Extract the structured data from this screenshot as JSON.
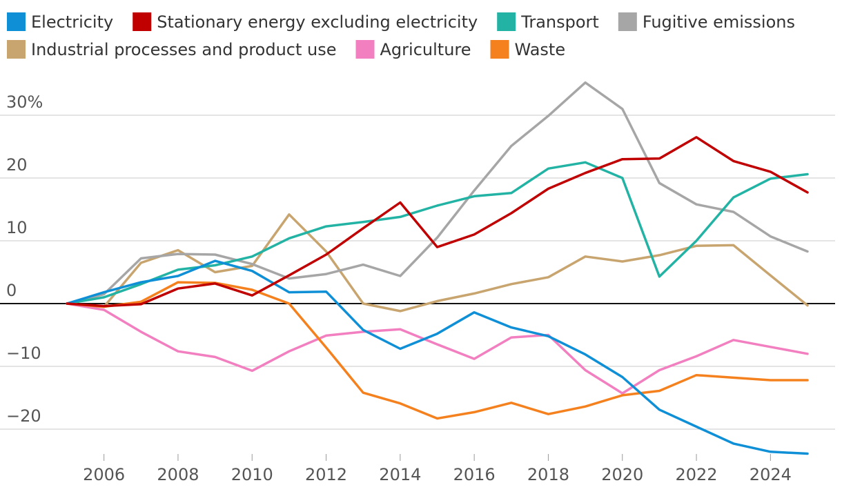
{
  "chart_data": {
    "type": "line",
    "title": "",
    "xlabel": "",
    "ylabel": "",
    "ylim": [
      -24,
      36
    ],
    "xlim": [
      2005,
      2025
    ],
    "grid": true,
    "legend_position": "top",
    "x": [
      2005,
      2006,
      2007,
      2008,
      2009,
      2010,
      2011,
      2012,
      2013,
      2014,
      2015,
      2016,
      2017,
      2018,
      2019,
      2020,
      2021,
      2022,
      2023,
      2024,
      2025
    ],
    "x_ticks": [
      {
        "value": 2006,
        "label": "2006"
      },
      {
        "value": 2008,
        "label": "2008"
      },
      {
        "value": 2010,
        "label": "2010"
      },
      {
        "value": 2012,
        "label": "2012"
      },
      {
        "value": 2014,
        "label": "2014"
      },
      {
        "value": 2016,
        "label": "2016"
      },
      {
        "value": 2018,
        "label": "2018"
      },
      {
        "value": 2020,
        "label": "2020"
      },
      {
        "value": 2022,
        "label": "2022"
      },
      {
        "value": 2024,
        "label": "2024"
      }
    ],
    "y_ticks": [
      {
        "value": 30,
        "label": "30%"
      },
      {
        "value": 20,
        "label": "20"
      },
      {
        "value": 10,
        "label": "10"
      },
      {
        "value": 0,
        "label": "0"
      },
      {
        "value": -10,
        "label": "−10"
      },
      {
        "value": -20,
        "label": "−20"
      }
    ],
    "series": [
      {
        "name": "Industrial processes and product use",
        "color": "#c8a46e",
        "values": [
          0,
          -0.5,
          6.5,
          8.5,
          5,
          6,
          14.2,
          8.3,
          0,
          -1.2,
          0.4,
          1.6,
          3.1,
          4.2,
          7.5,
          6.7,
          7.7,
          9.2,
          9.3,
          4.5,
          -0.3
        ]
      },
      {
        "name": "Fugitive emissions",
        "color": "#a6a6a6",
        "values": [
          0,
          1.5,
          7.2,
          7.9,
          7.8,
          6.3,
          4,
          4.7,
          6.2,
          4.4,
          10.5,
          18,
          25.1,
          29.9,
          35.2,
          31,
          19.2,
          15.8,
          14.6,
          10.7,
          8.3
        ]
      },
      {
        "name": "Transport",
        "color": "#22b3a4",
        "values": [
          0,
          1,
          3.1,
          5.4,
          6.1,
          7.5,
          10.4,
          12.3,
          13,
          13.8,
          15.6,
          17.1,
          17.6,
          21.5,
          22.5,
          20,
          4.3,
          10,
          16.9,
          19.9,
          20.6
        ]
      },
      {
        "name": "Agriculture",
        "color": "#f27fbf",
        "values": [
          0,
          -1,
          -4.5,
          -7.6,
          -8.5,
          -10.7,
          -7.6,
          -5.1,
          -4.5,
          -4.1,
          -6.5,
          -8.8,
          -5.4,
          -5,
          -10.6,
          -14.3,
          -10.6,
          -8.4,
          -5.8,
          -6.9,
          -8
        ]
      },
      {
        "name": "Waste",
        "color": "#f5811e",
        "values": [
          0,
          -0.5,
          0.3,
          3.4,
          3.3,
          2.2,
          0,
          -7,
          -14.2,
          -15.9,
          -18.3,
          -17.3,
          -15.8,
          -17.6,
          -16.4,
          -14.6,
          -13.9,
          -11.4,
          -11.8,
          -12.2,
          -12.2
        ]
      },
      {
        "name": "Electricity",
        "color": "#0e8fd6",
        "values": [
          0,
          1.8,
          3.4,
          4.4,
          6.8,
          5.2,
          1.8,
          1.9,
          -4.2,
          -7.2,
          -4.8,
          -1.4,
          -3.8,
          -5.2,
          -8.1,
          -11.7,
          -16.9,
          -19.6,
          -22.3,
          -23.6,
          -23.9
        ]
      },
      {
        "name": "Stationary energy excluding electricity",
        "color": "#c00000",
        "values": [
          0,
          -0.4,
          -0.1,
          2.4,
          3.2,
          1.3,
          4.5,
          7.8,
          12,
          16.1,
          9,
          11,
          14.4,
          18.3,
          20.8,
          23,
          23.1,
          26.5,
          22.7,
          21,
          17.7
        ]
      }
    ],
    "legend": [
      {
        "name": "Electricity",
        "color": "#0e8fd6"
      },
      {
        "name": "Stationary energy excluding electricity",
        "color": "#c00000"
      },
      {
        "name": "Transport",
        "color": "#22b3a4"
      },
      {
        "name": "Fugitive emissions",
        "color": "#a6a6a6"
      },
      {
        "name": "Industrial processes and product use",
        "color": "#c8a46e"
      },
      {
        "name": "Agriculture",
        "color": "#f27fbf"
      },
      {
        "name": "Waste",
        "color": "#f5811e"
      }
    ]
  }
}
